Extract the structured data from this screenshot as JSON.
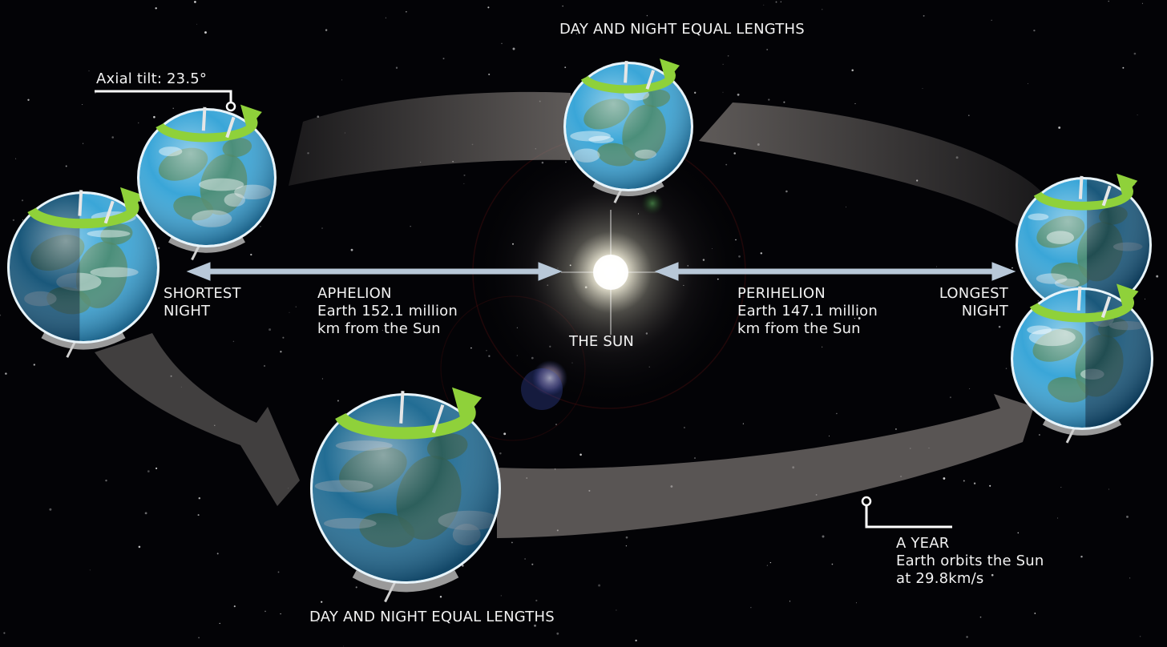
{
  "labels": {
    "equal_top": "DAY AND NIGHT EQUAL LENGTHS",
    "equal_bottom": "DAY AND NIGHT EQUAL LENGTHS",
    "axial_tilt": "Axial tilt: 23.5°",
    "shortest_night": [
      "SHORTEST",
      "NIGHT"
    ],
    "longest_night": [
      "LONGEST",
      "NIGHT"
    ],
    "aphelion": [
      "APHELION",
      "Earth 152.1 million",
      "km from the Sun"
    ],
    "perihelion": [
      "PERIHELION",
      "Earth 147.1 million",
      "km from the Sun"
    ],
    "sun": "THE SUN",
    "year": [
      "A YEAR",
      "Earth orbits the Sun",
      "at 29.8km/s"
    ]
  },
  "colors": {
    "background": "#030306",
    "orbit_band": "#8a8480",
    "rotation_arrow": "#8fd13a",
    "ocean": "#3aa6d8",
    "land": "#4f8a6a",
    "sun_glow": "#fffbe6",
    "distance_arrow": "#b8c8d8",
    "text": "#f2f2f2"
  }
}
